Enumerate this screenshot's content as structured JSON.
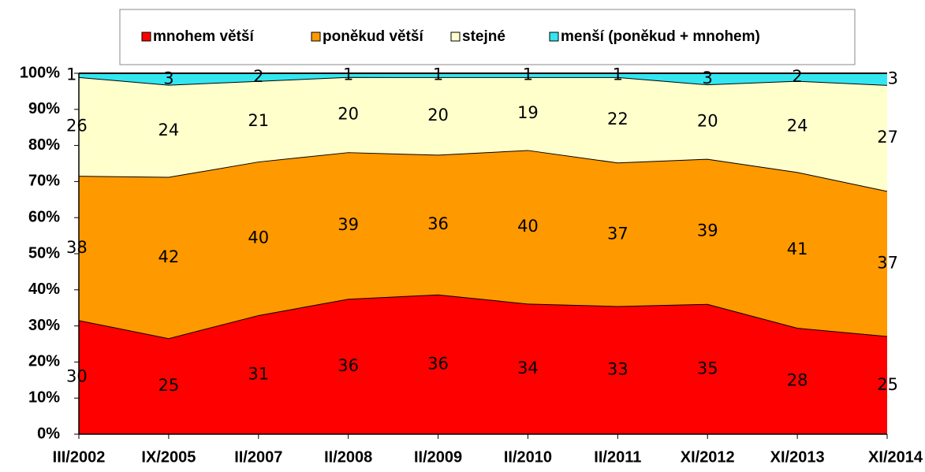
{
  "chart_data": {
    "type": "area",
    "stacking": "percent",
    "categories": [
      "III/2002",
      "IX/2005",
      "II/2007",
      "II/2008",
      "II/2009",
      "II/2010",
      "II/2011",
      "XI/2012",
      "XI/2013",
      "XI/2014"
    ],
    "series": [
      {
        "name": "mnohem větší",
        "color": "#ff0000",
        "values": [
          30,
          25,
          31,
          36,
          36,
          34,
          33,
          35,
          28,
          25
        ]
      },
      {
        "name": "poněkud větší",
        "color": "#ff9900",
        "values": [
          38,
          42,
          40,
          39,
          36,
          40,
          37,
          39,
          41,
          37
        ]
      },
      {
        "name": "stejné",
        "color": "#ffffcc",
        "values": [
          26,
          24,
          21,
          20,
          20,
          19,
          22,
          20,
          24,
          27
        ]
      },
      {
        "name": "menší (poněkud + mnohem)",
        "color": "#33e6f0",
        "values": [
          1,
          3,
          2,
          1,
          1,
          1,
          1,
          3,
          2,
          3
        ]
      }
    ],
    "ylim": [
      0,
      100
    ],
    "yticks": [
      {
        "value": 0,
        "label": "0%"
      },
      {
        "value": 10,
        "label": "10%"
      },
      {
        "value": 20,
        "label": "20%"
      },
      {
        "value": 30,
        "label": "30%"
      },
      {
        "value": 40,
        "label": "40%"
      },
      {
        "value": 50,
        "label": "50%"
      },
      {
        "value": 60,
        "label": "60%"
      },
      {
        "value": 70,
        "label": "70%"
      },
      {
        "value": 80,
        "label": "80%"
      },
      {
        "value": 90,
        "label": "90%"
      },
      {
        "value": 100,
        "label": "100%"
      }
    ],
    "legend": "top"
  }
}
